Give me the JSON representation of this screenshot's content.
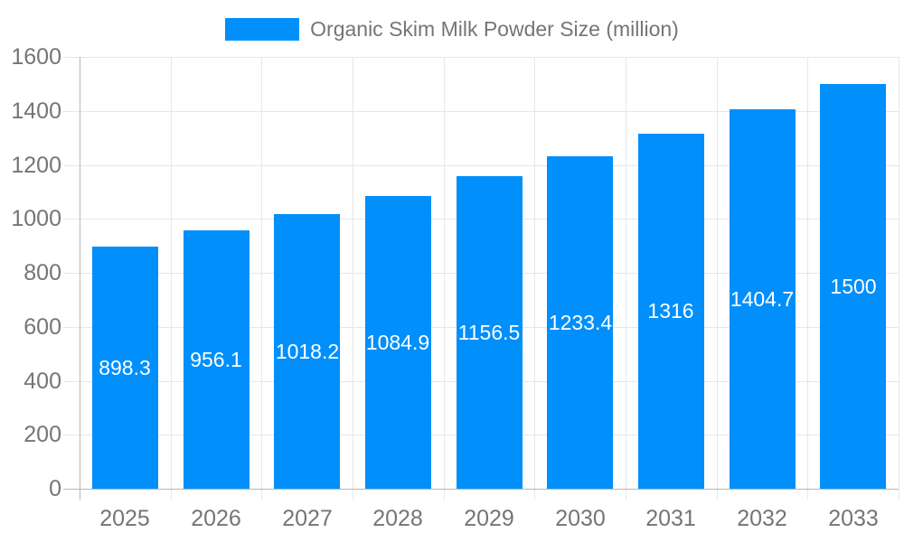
{
  "legend": {
    "series_label": "Organic Skim Milk Powder Size (million)"
  },
  "colors": {
    "bar": "#008FFB",
    "grid": "#e7e7e7",
    "axis": "#b6b6b6",
    "tick_label": "#757575",
    "bar_label": "#ffffff",
    "background": "#ffffff"
  },
  "chart_data": {
    "type": "bar",
    "title": "Organic Skim Milk Powder Size (million)",
    "categories": [
      "2025",
      "2026",
      "2027",
      "2028",
      "2029",
      "2030",
      "2031",
      "2032",
      "2033"
    ],
    "series": [
      {
        "name": "Organic Skim Milk Powder Size (million)",
        "values": [
          898.3,
          956.1,
          1018.2,
          1084.9,
          1156.5,
          1233.4,
          1316,
          1404.7,
          1500
        ]
      }
    ],
    "bar_value_labels": [
      "898.3",
      "956.1",
      "1018.2",
      "1084.9",
      "1156.5",
      "1233.4",
      "1316",
      "1404.7",
      "1500"
    ],
    "xlabel": "",
    "ylabel": "",
    "ylim": [
      0,
      1600
    ],
    "y_tick_step": 200,
    "y_tick_labels": [
      "0",
      "200",
      "400",
      "600",
      "800",
      "1000",
      "1200",
      "1400",
      "1600"
    ],
    "grid": "horizontal and vertical gridlines on",
    "legend_position": "top-center",
    "value_label_position": "centered inside bar"
  }
}
